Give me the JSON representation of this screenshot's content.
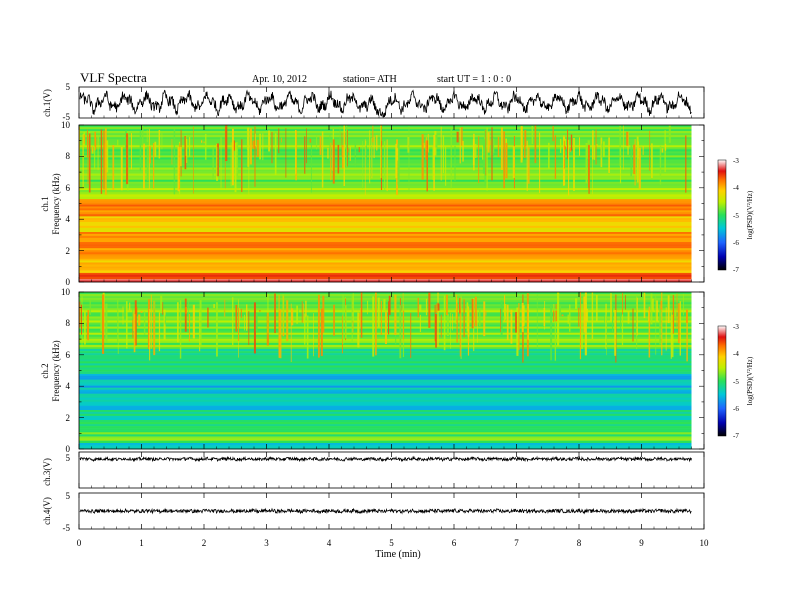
{
  "header": {
    "title": "VLF  Spectra",
    "date": "Apr. 10, 2012",
    "station": "station= ATH",
    "start": "start  UT  =    1  : 0  : 0"
  },
  "colors": {
    "background": "#ffffff",
    "axes": "#000000",
    "trace": "#000000"
  },
  "chart_data": [
    {
      "type": "line",
      "name": "ch1-waveform",
      "ylabel": "ch.1(V)",
      "ylim": [
        -5,
        5
      ],
      "yticks": [
        "5",
        "-5"
      ],
      "xlim": [
        0,
        10
      ]
    },
    {
      "type": "heatmap",
      "name": "ch1-spectrogram",
      "ylabel": "ch.1\nFrequency  (kHz)",
      "ylabel_lines": [
        "ch.1",
        "Frequency  (kHz)"
      ],
      "ylim": [
        0,
        10
      ],
      "yticks": [
        "0",
        "2",
        "4",
        "6",
        "8",
        "10"
      ],
      "xlim": [
        0,
        10
      ],
      "data_end_min": 9.8,
      "colorbar": {
        "label": "log(PSD)(V²/Hz)",
        "range": [
          -7,
          -3
        ],
        "ticks": [
          "-3",
          "-4",
          "-5",
          "-6",
          "-7"
        ]
      },
      "colormap": [
        "#000000",
        "#0000b0",
        "#1e64ff",
        "#00c8d8",
        "#28e05a",
        "#bff000",
        "#ffd200",
        "#ff7000",
        "#e01010",
        "#ffffff"
      ],
      "bands": [
        {
          "f": [
            0.0,
            0.2
          ],
          "level": -3.3
        },
        {
          "f": [
            0.2,
            0.6
          ],
          "level": -3.8
        },
        {
          "f": [
            0.6,
            1.5
          ],
          "level": -4.3
        },
        {
          "f": [
            1.5,
            3.2
          ],
          "level": -4.0
        },
        {
          "f": [
            3.2,
            4.2
          ],
          "level": -4.4
        },
        {
          "f": [
            4.2,
            5.3
          ],
          "level": -4.0
        },
        {
          "f": [
            5.3,
            6.0
          ],
          "level": -4.9
        },
        {
          "f": [
            6.0,
            10.0
          ],
          "level": -5.0
        }
      ]
    },
    {
      "type": "heatmap",
      "name": "ch2-spectrogram",
      "ylabel": "ch.2\nFrequency  (kHz)",
      "ylabel_lines": [
        "ch.2",
        "Frequency  (kHz)"
      ],
      "ylim": [
        0,
        10
      ],
      "yticks": [
        "0",
        "2",
        "4",
        "6",
        "8",
        "10"
      ],
      "xlim": [
        0,
        10
      ],
      "data_end_min": 9.8,
      "colorbar": {
        "label": "log(PSD)(V²/Hz)",
        "range": [
          -7,
          -3
        ],
        "ticks": [
          "-3",
          "-4",
          "-5",
          "-6",
          "-7"
        ]
      },
      "colormap": [
        "#000000",
        "#0000b0",
        "#1e64ff",
        "#00c8d8",
        "#28e05a",
        "#bff000",
        "#ffd200",
        "#ff7000",
        "#e01010",
        "#ffffff"
      ],
      "bands": [
        {
          "f": [
            0.0,
            0.4
          ],
          "level": -5.6
        },
        {
          "f": [
            0.4,
            1.2
          ],
          "level": -5.1
        },
        {
          "f": [
            1.2,
            2.5
          ],
          "level": -5.4
        },
        {
          "f": [
            2.5,
            4.8
          ],
          "level": -5.7
        },
        {
          "f": [
            4.8,
            6.5
          ],
          "level": -5.3
        },
        {
          "f": [
            6.5,
            10.0
          ],
          "level": -5.0
        }
      ]
    },
    {
      "type": "line",
      "name": "ch3-waveform",
      "ylabel": "ch.3(V)",
      "ylim": [
        -5,
        5
      ],
      "yticks": [
        "5"
      ],
      "xlim": [
        0,
        10
      ]
    },
    {
      "type": "line",
      "name": "ch4-waveform",
      "ylabel": "ch.4(V)",
      "ylim": [
        -5,
        5
      ],
      "yticks": [
        "5",
        "-5"
      ],
      "xlim": [
        0,
        10
      ],
      "xlabel": "Time  (min)",
      "xticks": [
        "0",
        "1",
        "2",
        "3",
        "4",
        "5",
        "6",
        "7",
        "8",
        "9",
        "10"
      ]
    }
  ]
}
